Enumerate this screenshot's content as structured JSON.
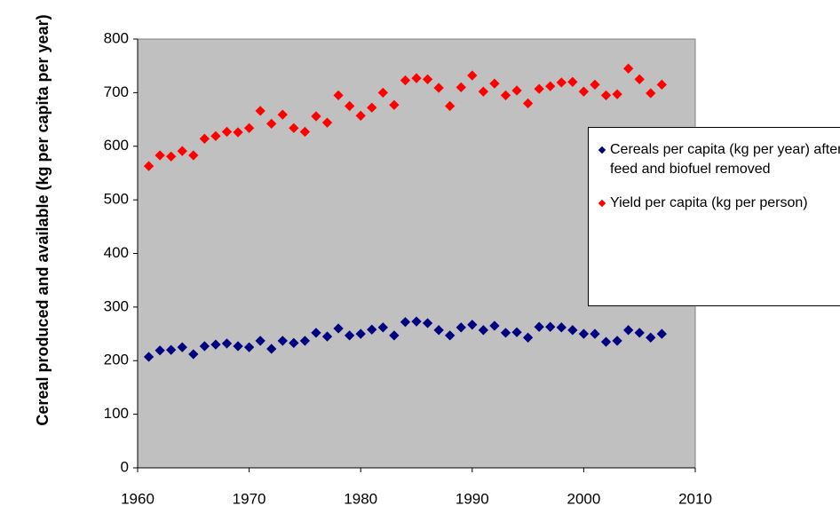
{
  "chart_data": {
    "type": "scatter",
    "y_label": "Cereal produced and available (kg per capita per year)",
    "xlim": [
      1960,
      2010
    ],
    "xticks": [
      1960,
      1970,
      1980,
      1990,
      2000,
      2010
    ],
    "ylim": [
      0,
      800
    ],
    "yticks": [
      0,
      100,
      200,
      300,
      400,
      500,
      600,
      700,
      800
    ],
    "background": "#c0c0c0",
    "x": [
      1961,
      1962,
      1963,
      1964,
      1965,
      1966,
      1967,
      1968,
      1969,
      1970,
      1971,
      1972,
      1973,
      1974,
      1975,
      1976,
      1977,
      1978,
      1979,
      1980,
      1981,
      1982,
      1983,
      1984,
      1985,
      1986,
      1987,
      1988,
      1989,
      1990,
      1991,
      1992,
      1993,
      1994,
      1995,
      1996,
      1997,
      1998,
      1999,
      2000,
      2001,
      2002,
      2003,
      2004,
      2005,
      2006,
      2007
    ],
    "series": [
      {
        "name": "Cereals per capita (kg per year) after feed and biofuel removed",
        "color": "#000080",
        "values": [
          207,
          219,
          220,
          225,
          212,
          227,
          230,
          232,
          227,
          225,
          237,
          222,
          237,
          233,
          237,
          252,
          245,
          260,
          247,
          250,
          258,
          262,
          247,
          272,
          273,
          270,
          257,
          247,
          262,
          267,
          257,
          265,
          252,
          253,
          243,
          263,
          263,
          262,
          257,
          250,
          250,
          235,
          237,
          257,
          252,
          243,
          250
        ]
      },
      {
        "name": "Yield per capita (kg per person)",
        "color": "#ff0000",
        "values": [
          563,
          583,
          581,
          591,
          583,
          614,
          619,
          627,
          626,
          634,
          666,
          642,
          659,
          634,
          627,
          656,
          644,
          695,
          675,
          657,
          672,
          700,
          677,
          723,
          727,
          725,
          709,
          675,
          710,
          732,
          702,
          717,
          695,
          704,
          680,
          707,
          712,
          719,
          720,
          702,
          715,
          695,
          697,
          745,
          725,
          699,
          715
        ]
      }
    ]
  }
}
